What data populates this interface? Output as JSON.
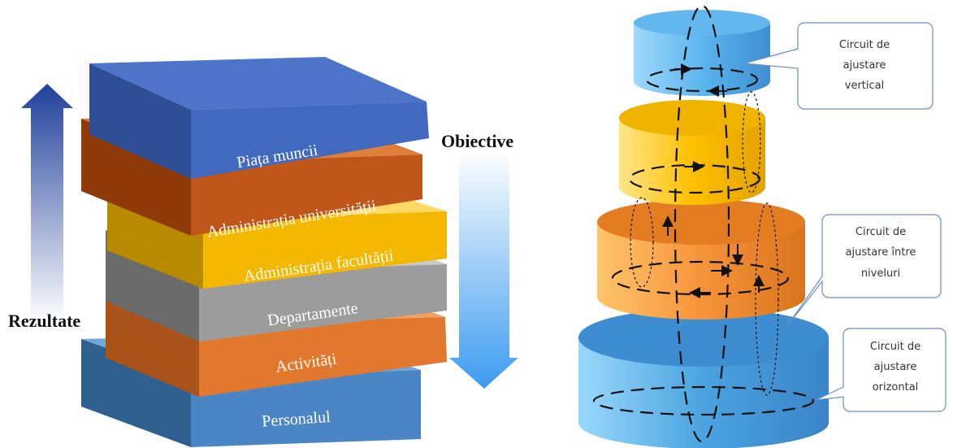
{
  "left_diagram": {
    "layers": [
      {
        "id": "piata",
        "label": "Piața muncii",
        "color": "#4472c4"
      },
      {
        "id": "univ",
        "label": "Administrația universității",
        "color": "#c55a11"
      },
      {
        "id": "fac",
        "label": "Administrația facultății",
        "color": "#ffc000"
      },
      {
        "id": "dep",
        "label": "Departamente",
        "color": "#a5a5a5"
      },
      {
        "id": "act",
        "label": "Activități",
        "color": "#ed7d31"
      },
      {
        "id": "pers",
        "label": "Personalul",
        "color": "#5b9bd5"
      }
    ],
    "results_label": "Rezultate",
    "objectives_label": "Obiective"
  },
  "right_diagram": {
    "tiers": [
      {
        "id": "top",
        "color": "#5bb8f0"
      },
      {
        "id": "yellow",
        "color": "#ffc000"
      },
      {
        "id": "orange",
        "color": "#f7943a"
      },
      {
        "id": "bottom",
        "color": "#4aa3e0"
      }
    ],
    "callouts": [
      {
        "id": "vertical",
        "lines": [
          "Circuit de",
          "ajustare",
          "vertical"
        ]
      },
      {
        "id": "between",
        "lines": [
          "Circuit de",
          "ajustare între",
          "niveluri"
        ]
      },
      {
        "id": "horizontal",
        "lines": [
          "Circuit de",
          "ajustare",
          "orizontal"
        ]
      }
    ]
  }
}
